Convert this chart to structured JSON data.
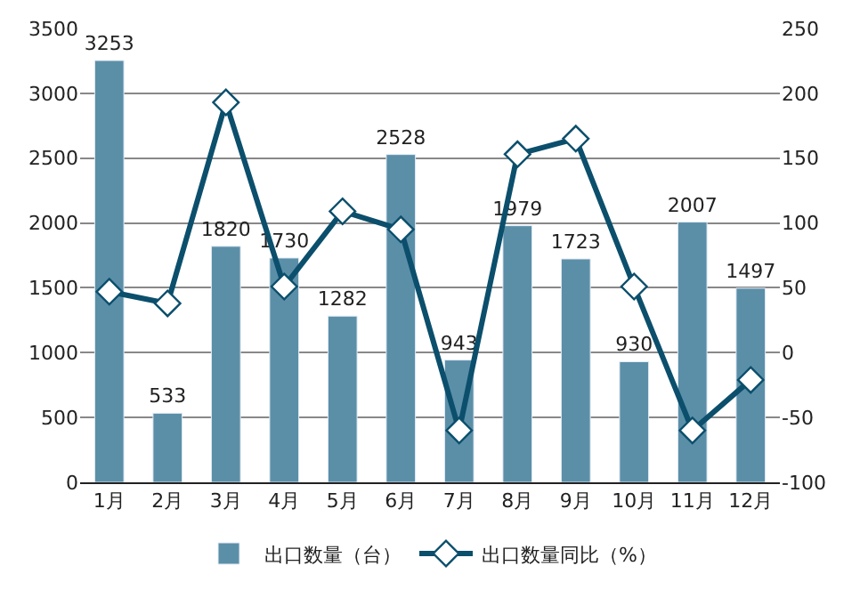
{
  "chart_data": {
    "type": "bar",
    "categories": [
      "1月",
      "2月",
      "3月",
      "4月",
      "5月",
      "6月",
      "7月",
      "8月",
      "9月",
      "10月",
      "11月",
      "12月"
    ],
    "series": [
      {
        "name": "出口数量（台）",
        "color": "#5b8fa8",
        "values": [
          3253,
          533,
          1820,
          1730,
          1282,
          2528,
          943,
          1979,
          1723,
          930,
          2007,
          1497
        ],
        "value_labels": [
          "3253",
          "533",
          "1820",
          "1730",
          "1282",
          "2528",
          "943",
          "1979",
          "1723",
          "930",
          "2007",
          "1497"
        ]
      },
      {
        "name": "出口数量同比（%）",
        "type": "line",
        "axis": "y2",
        "color": "#0b4f6c",
        "marker": "diamond",
        "values": [
          47,
          38,
          193,
          51,
          109,
          95,
          -60,
          153,
          165,
          51,
          -60,
          -21
        ]
      }
    ],
    "ylim": [
      0,
      3500
    ],
    "yticks": [
      0,
      500,
      1000,
      1500,
      2000,
      2500,
      3000,
      3500
    ],
    "y2lim": [
      -100,
      250
    ],
    "y2ticks": [
      -100,
      -50,
      0,
      50,
      100,
      150,
      200,
      250
    ],
    "grid": "y",
    "legend": "bottom"
  }
}
